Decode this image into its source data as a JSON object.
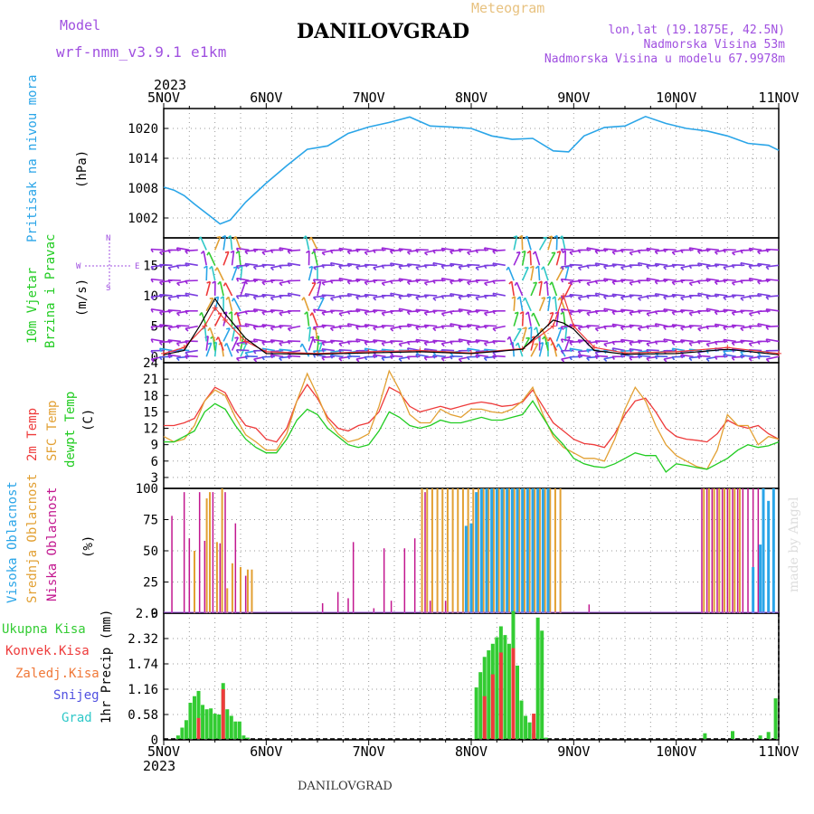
{
  "header": {
    "model_label": "Model",
    "model_name": "wrf-nmm_v3.9.1 e1km",
    "title": "DANILOVGRAD",
    "meteogram": "Meteogram",
    "lonlat": "lon,lat (19.1875E, 42.5N)",
    "elev": "Nadmorska Visina 53m",
    "elev_model": "Nadmorska Visina u modelu 67.9978m",
    "year": "2023",
    "footer_title": "DANILOVGRAD",
    "credit": "made by Angel"
  },
  "colors": {
    "pressure": "#2aa5e8",
    "temp2m": "#ee3b3b",
    "sfc": "#e2a033",
    "dewpt": "#22cc22",
    "wind_label": "#22cc22",
    "low_cloud": "#c2178f",
    "mid_cloud": "#e2a033",
    "high_cloud": "#2aa5e8",
    "precip_total": "#33cc33",
    "precip_conv": "#ee3b3b",
    "precip_frz": "#f07838",
    "snow": "#5050e0",
    "grad": "#2fc8c8",
    "purple": "#a050e0"
  },
  "chart_data": [
    {
      "type": "line",
      "ylabel": [
        "Pritisak na nivou mora",
        "(hPa)"
      ],
      "categories": [
        "5NOV",
        "6NOV",
        "7NOV",
        "8NOV",
        "9NOV",
        "10NOV",
        "11NOV"
      ],
      "ylim": [
        998,
        1024
      ],
      "yticks": [
        1002,
        1008,
        1014,
        1020
      ],
      "series": [
        {
          "x": [
            0,
            0.1,
            0.2,
            0.3,
            0.45,
            0.55,
            0.65,
            0.8,
            1.0,
            1.2,
            1.4,
            1.6,
            1.8,
            2.0,
            2.2,
            2.4,
            2.6,
            2.8,
            3.0,
            3.2,
            3.4,
            3.6,
            3.8,
            3.95,
            4.1,
            4.3,
            4.5,
            4.7,
            4.9,
            5.1,
            5.3,
            5.5,
            5.7,
            5.9,
            6.0
          ],
          "values": [
            1008.2,
            1007.6,
            1006.5,
            1004.8,
            1002.4,
            1000.8,
            1001.6,
            1005.2,
            1009.0,
            1012.5,
            1015.8,
            1016.5,
            1019.0,
            1020.3,
            1021.2,
            1022.3,
            1020.5,
            1020.3,
            1020.0,
            1018.5,
            1017.8,
            1018.0,
            1015.5,
            1015.3,
            1018.5,
            1020.2,
            1020.5,
            1022.4,
            1021.0,
            1020.0,
            1019.5,
            1018.5,
            1017.0,
            1016.6,
            1015.6
          ]
        }
      ]
    },
    {
      "type": "scatter",
      "ylabel": [
        "10m Vjetar",
        "Brzina i Pravac",
        "(m/s)"
      ],
      "compass": {
        "N": "N",
        "S": "S",
        "W": "W",
        "E": "E"
      },
      "ylim": [
        -1,
        19.5
      ],
      "yticks": [
        0,
        5,
        10,
        15
      ],
      "barb_rows": [
        0,
        1,
        2.5,
        5,
        7.5,
        10,
        12.5,
        15,
        17.5
      ],
      "gust_series": {
        "x": [
          0,
          0.2,
          0.4,
          0.5,
          0.6,
          0.8,
          1.0,
          1.5,
          2.0,
          2.5,
          3.0,
          3.5,
          3.8,
          3.9,
          4.0,
          4.2,
          4.5,
          5.0,
          5.5,
          6.0
        ],
        "values": [
          0.5,
          1.5,
          5,
          8,
          6,
          2.5,
          0.8,
          0.5,
          0.8,
          1.0,
          0.6,
          1.3,
          5,
          10,
          5,
          1.5,
          0.6,
          0.8,
          1.5,
          0.5
        ]
      },
      "speed_series": {
        "x": [
          0,
          0.2,
          0.35,
          0.5,
          0.6,
          0.8,
          1.0,
          1.5,
          2.0,
          2.5,
          3.0,
          3.5,
          3.8,
          3.9,
          4.0,
          4.2,
          4.5,
          5.0,
          5.5,
          6.0
        ],
        "values": [
          0.3,
          1.0,
          5,
          9.5,
          7,
          3,
          0.5,
          0.4,
          0.6,
          0.8,
          0.5,
          1.2,
          6,
          5.5,
          4.5,
          1.0,
          0.4,
          0.5,
          1.2,
          0.3
        ]
      }
    },
    {
      "type": "line",
      "ylabel": [
        "2m Temp",
        "SFC Temp",
        "dewpt Temp",
        "(C)"
      ],
      "ylim": [
        1,
        24
      ],
      "yticks": [
        3,
        6,
        9,
        12,
        15,
        18,
        21,
        24
      ],
      "x": [
        0,
        0.1,
        0.2,
        0.3,
        0.4,
        0.5,
        0.6,
        0.7,
        0.8,
        0.9,
        1.0,
        1.1,
        1.2,
        1.3,
        1.4,
        1.5,
        1.6,
        1.7,
        1.8,
        1.9,
        2.0,
        2.1,
        2.2,
        2.3,
        2.4,
        2.5,
        2.6,
        2.7,
        2.8,
        2.9,
        3.0,
        3.1,
        3.2,
        3.3,
        3.4,
        3.5,
        3.6,
        3.7,
        3.8,
        3.9,
        4.0,
        4.1,
        4.2,
        4.3,
        4.4,
        4.5,
        4.6,
        4.7,
        4.8,
        4.9,
        5.0,
        5.1,
        5.2,
        5.3,
        5.4,
        5.5,
        5.6,
        5.7,
        5.8,
        5.9,
        6.0
      ],
      "series": [
        {
          "name": "2m Temp",
          "values": [
            12.5,
            12.5,
            13,
            13.8,
            17,
            19.5,
            18.5,
            15,
            12.5,
            12,
            10,
            9.5,
            12,
            17,
            20,
            17.5,
            14,
            12,
            11.5,
            12.5,
            13,
            15,
            19.5,
            18.5,
            16,
            15,
            15.5,
            16,
            15.5,
            16,
            16.5,
            16.8,
            16.5,
            16,
            16.2,
            16.8,
            19,
            16,
            13,
            11.5,
            10,
            9.2,
            9,
            8.5,
            11,
            14.5,
            17,
            17.5,
            15,
            12,
            10.5,
            10,
            9.8,
            9.5,
            11,
            13.5,
            12.5,
            12,
            12.5,
            11,
            10
          ]
        },
        {
          "name": "SFC Temp",
          "values": [
            10.5,
            9.5,
            10,
            12.5,
            17,
            19,
            18,
            14,
            10.8,
            9.5,
            8,
            8,
            11,
            17,
            22,
            18,
            13.5,
            11,
            9.5,
            10,
            11,
            16,
            22.5,
            19,
            14.5,
            13,
            13,
            15.5,
            14.5,
            14,
            15.5,
            15.5,
            15,
            14.8,
            15.5,
            17,
            19.5,
            14.5,
            10.5,
            8.5,
            7.5,
            6.5,
            6.5,
            6,
            10,
            15.5,
            19.5,
            17,
            12.5,
            9,
            7,
            6,
            5,
            4.5,
            8,
            14.5,
            12.5,
            12.5,
            9,
            10.5,
            10
          ]
        },
        {
          "name": "dewpt Temp",
          "values": [
            9.5,
            9.5,
            10.5,
            11.5,
            15,
            16.5,
            15.5,
            12.5,
            10,
            8.5,
            7.5,
            7.5,
            10,
            13.5,
            15.5,
            14.5,
            12,
            10.5,
            9,
            8.5,
            9,
            11.5,
            15,
            14,
            12.5,
            12,
            12.5,
            13.5,
            13,
            13,
            13.5,
            14,
            13.5,
            13.5,
            14,
            14.5,
            17,
            14,
            11,
            9,
            6.5,
            5.5,
            5,
            4.8,
            5.5,
            6.5,
            7.5,
            7,
            7,
            4,
            5.5,
            5.2,
            4.8,
            4.5,
            5.5,
            6.5,
            8,
            9,
            8.5,
            8.8,
            9.5
          ]
        }
      ]
    },
    {
      "type": "bar",
      "ylabel": [
        "Visoka Oblacnost",
        "Srednja Oblacnost",
        "Niska Oblacnost",
        "(%)"
      ],
      "ylim": [
        0,
        100
      ],
      "yticks": [
        0,
        25,
        50,
        75,
        100
      ],
      "series": [
        {
          "name": "Niska Oblacnost",
          "x": [
            0.08,
            0.2,
            0.25,
            0.35,
            0.4,
            0.48,
            0.55,
            0.6,
            0.7,
            0.8,
            1.55,
            1.7,
            1.8,
            1.85,
            2.05,
            2.15,
            2.22,
            2.35,
            2.45,
            2.55,
            2.6,
            2.75,
            4.15,
            5.25,
            5.3,
            5.35,
            5.4,
            5.45,
            5.5,
            5.55,
            5.6,
            5.65,
            5.7,
            5.75,
            5.8
          ],
          "values": [
            78,
            97,
            60,
            97,
            58,
            97,
            56,
            97,
            72,
            30,
            8,
            17,
            12,
            57,
            4,
            52,
            10,
            52,
            60,
            97,
            10,
            10,
            7,
            100,
            100,
            100,
            100,
            100,
            100,
            100,
            100,
            100,
            100,
            100,
            100
          ]
        },
        {
          "name": "Srednja Oblacnost",
          "x": [
            0.3,
            0.42,
            0.45,
            0.52,
            0.57,
            0.62,
            0.67,
            0.75,
            0.82,
            0.86,
            2.52,
            2.57,
            2.62,
            2.67,
            2.72,
            2.77,
            2.82,
            2.87,
            2.92,
            2.97,
            3.02,
            3.07,
            3.12,
            3.17,
            3.22,
            3.27,
            3.32,
            3.37,
            3.42,
            3.47,
            3.52,
            3.57,
            3.62,
            3.67,
            3.72,
            3.77,
            3.82,
            3.87,
            5.27,
            5.32,
            5.37,
            5.42,
            5.47,
            5.52,
            5.57,
            5.62
          ],
          "values": [
            50,
            92,
            97,
            57,
            100,
            20,
            40,
            37,
            35,
            35,
            100,
            100,
            100,
            100,
            100,
            100,
            100,
            100,
            100,
            100,
            100,
            100,
            100,
            100,
            100,
            100,
            100,
            100,
            100,
            100,
            100,
            100,
            100,
            100,
            100,
            100,
            100,
            100,
            100,
            100,
            100,
            100,
            100,
            100,
            100,
            100
          ]
        },
        {
          "name": "Visoka Oblacnost",
          "x": [
            2.95,
            3.0,
            3.05,
            3.1,
            3.15,
            3.2,
            3.25,
            3.3,
            3.35,
            3.4,
            3.45,
            3.5,
            3.55,
            3.6,
            3.65,
            3.7,
            3.75,
            5.75,
            5.82,
            5.85,
            5.9,
            5.95
          ],
          "values": [
            70,
            72,
            97,
            100,
            100,
            100,
            100,
            100,
            100,
            100,
            100,
            100,
            100,
            100,
            100,
            100,
            100,
            37,
            55,
            100,
            90,
            100
          ]
        }
      ]
    },
    {
      "type": "bar",
      "ylabel": [
        "1hr Precip (mm)"
      ],
      "legend": [
        "Ukupna Kisa",
        "Konvek.Kisa",
        "Zaledj.Kisa",
        "Snijeg",
        "Grad"
      ],
      "ylim": [
        0,
        2.9
      ],
      "yticks": [
        0,
        0.58,
        1.16,
        1.74,
        2.32,
        2.9
      ],
      "ytick_labels": [
        "0",
        "0.58",
        "1.16",
        "1.74",
        "2.32",
        "2.9"
      ],
      "series": [
        {
          "name": "Ukupna Kisa",
          "x": [
            0.14,
            0.18,
            0.22,
            0.26,
            0.3,
            0.34,
            0.38,
            0.42,
            0.46,
            0.5,
            0.54,
            0.58,
            0.62,
            0.66,
            0.7,
            0.74,
            0.78,
            0.82,
            3.05,
            3.09,
            3.13,
            3.17,
            3.21,
            3.25,
            3.29,
            3.33,
            3.37,
            3.41,
            3.45,
            3.49,
            3.53,
            3.57,
            3.61,
            3.65,
            3.69,
            3.73,
            5.28,
            5.55,
            5.82,
            5.9,
            5.97
          ],
          "values": [
            0.1,
            0.28,
            0.45,
            0.85,
            1.0,
            1.12,
            0.8,
            0.7,
            0.72,
            0.6,
            0.58,
            1.3,
            0.7,
            0.55,
            0.42,
            0.42,
            0.1,
            0.05,
            1.2,
            1.55,
            1.9,
            2.05,
            2.2,
            2.35,
            2.6,
            2.4,
            2.2,
            2.95,
            1.7,
            0.9,
            0.55,
            0.4,
            0.15,
            2.8,
            2.5,
            0.05,
            0.15,
            0.2,
            0.1,
            0.18,
            0.95
          ]
        },
        {
          "name": "Konvek.Kisa",
          "x": [
            0.34,
            0.58,
            3.13,
            3.21,
            3.29,
            3.41,
            3.61
          ],
          "values": [
            0.5,
            1.16,
            1.0,
            1.5,
            2.0,
            2.1,
            0.6
          ]
        }
      ]
    }
  ]
}
